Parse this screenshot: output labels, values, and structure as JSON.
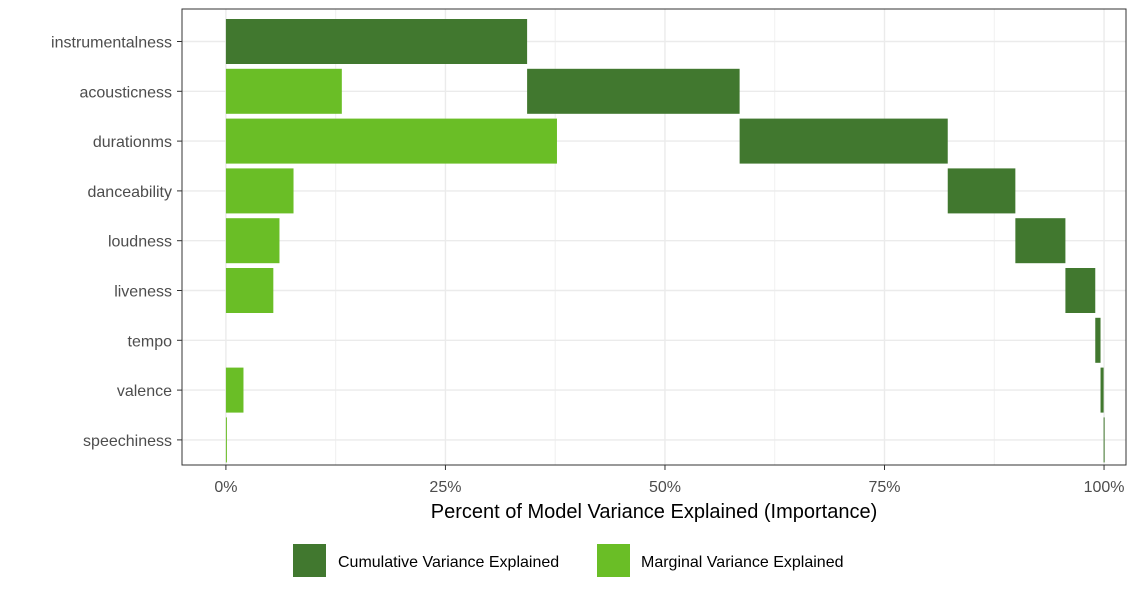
{
  "chart_data": {
    "type": "bar",
    "subtype": "horizontal waterfall",
    "categories": [
      "instrumentalness",
      "acousticness",
      "durationms",
      "danceability",
      "loudness",
      "liveness",
      "tempo",
      "valence",
      "speechiness"
    ],
    "series": [
      {
        "name": "Cumulative Variance Explained",
        "color": "#41782f",
        "ranges": [
          [
            0,
            34.3
          ],
          [
            34.3,
            58.5
          ],
          [
            58.5,
            82.2
          ],
          [
            82.2,
            89.9
          ],
          [
            89.9,
            95.6
          ],
          [
            95.6,
            99.0
          ],
          [
            99.0,
            99.6
          ],
          [
            99.6,
            99.95
          ],
          [
            99.95,
            100
          ]
        ]
      },
      {
        "name": "Marginal Variance Explained",
        "color": "#6abe26",
        "values": [
          0,
          13.2,
          37.7,
          7.7,
          6.1,
          5.4,
          0,
          2.0,
          0.1
        ]
      }
    ],
    "xlabel": "Percent of Model Variance Explained (Importance)",
    "ylabel": "",
    "xlim": [
      -5,
      102.5
    ],
    "x_ticks": [
      0,
      25,
      50,
      75,
      100
    ],
    "x_tick_labels": [
      "0%",
      "25%",
      "50%",
      "75%",
      "100%"
    ],
    "grid": true,
    "legend_position": "bottom"
  }
}
